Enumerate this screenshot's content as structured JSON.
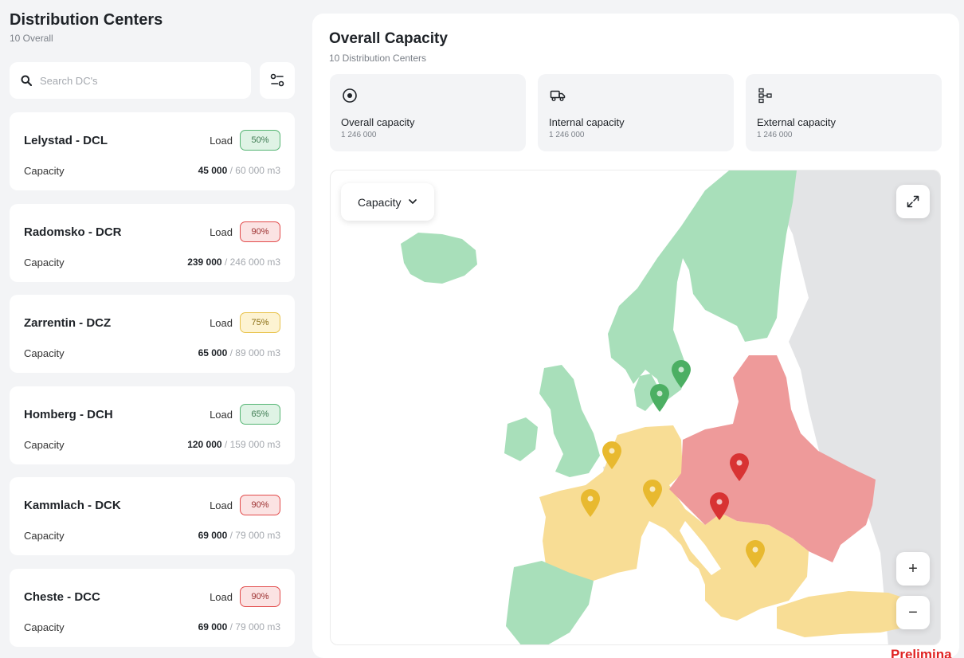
{
  "sidebar": {
    "title": "Distribution Centers",
    "subtitle": "10 Overall",
    "search_placeholder": "Search DC's",
    "load_label": "Load",
    "capacity_label": "Capacity",
    "unit": "m3",
    "centers": [
      {
        "name": "Lelystad - DCL",
        "load": "50%",
        "status": "green",
        "used": "45 000",
        "total": "60 000 m3"
      },
      {
        "name": "Radomsko - DCR",
        "load": "90%",
        "status": "red",
        "used": "239 000",
        "total": "246 000 m3"
      },
      {
        "name": "Zarrentin - DCZ",
        "load": "75%",
        "status": "yellow",
        "used": "65 000",
        "total": "89 000 m3"
      },
      {
        "name": "Homberg - DCH",
        "load": "65%",
        "status": "green",
        "used": "120 000",
        "total": "159 000 m3"
      },
      {
        "name": "Kammlach - DCK",
        "load": "90%",
        "status": "red",
        "used": "69 000",
        "total": "79 000 m3"
      },
      {
        "name": "Cheste - DCC",
        "load": "90%",
        "status": "red",
        "used": "69 000",
        "total": "79 000 m3"
      }
    ]
  },
  "overview": {
    "title": "Overall Capacity",
    "subtitle": "10 Distribution Centers",
    "stats": [
      {
        "label": "Overall capacity",
        "value": "1 246 000",
        "icon": "target-icon"
      },
      {
        "label": "Internal capacity",
        "value": "1 246 000",
        "icon": "truck-icon"
      },
      {
        "label": "External capacity",
        "value": "1 246 000",
        "icon": "network-icon"
      }
    ]
  },
  "map": {
    "dropdown_label": "Capacity",
    "zoom_in": "+",
    "zoom_out": "−",
    "colors": {
      "green": "#a8dfba",
      "yellow": "#f8dd95",
      "red": "#ee9a9a",
      "neutral": "#e3e4e6",
      "pin_green": "#4caf63",
      "pin_yellow": "#e8b92f",
      "pin_red": "#d83333"
    }
  },
  "watermark": "Prelimina"
}
